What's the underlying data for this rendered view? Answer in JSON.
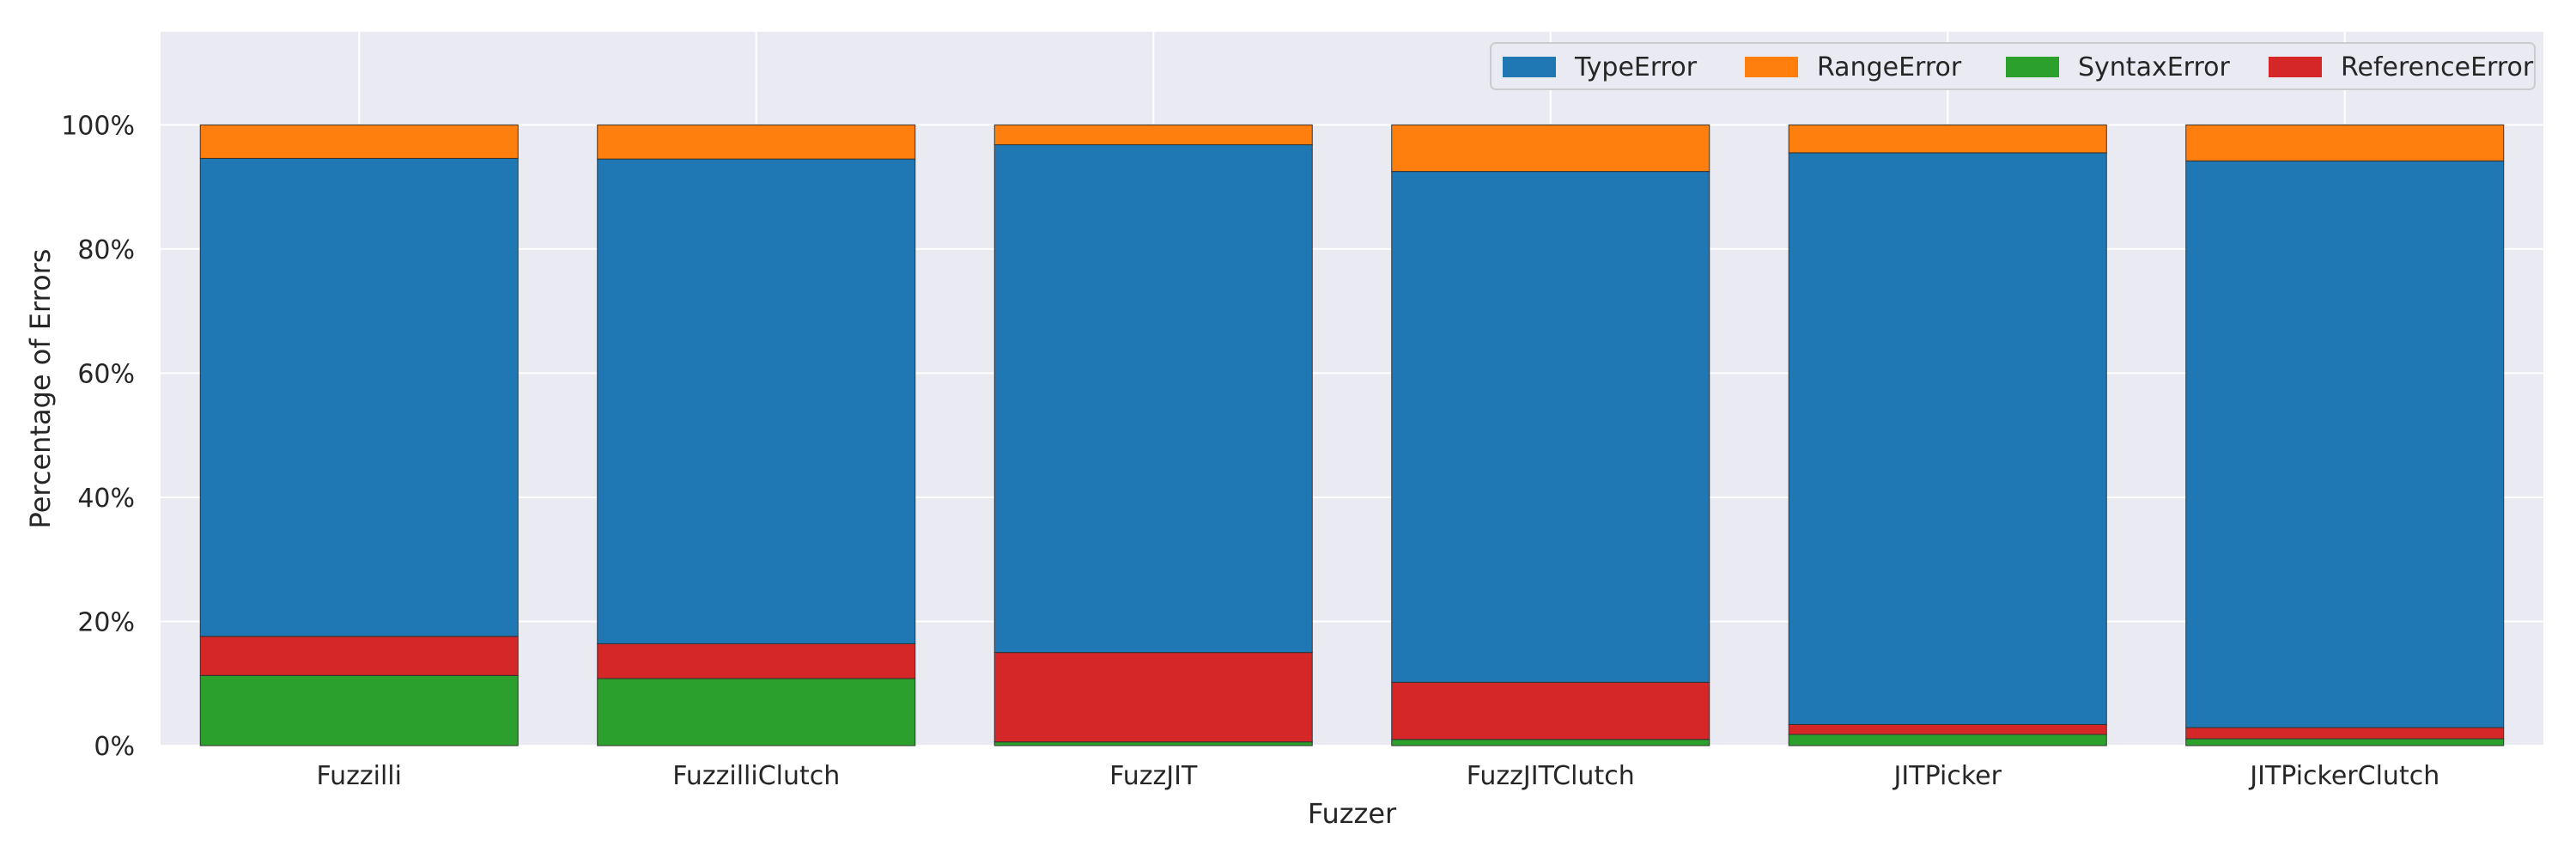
{
  "chart_data": {
    "type": "bar",
    "stacked": true,
    "normalized": true,
    "xlabel": "Fuzzer",
    "ylabel": "Percentage of Errors",
    "categories": [
      "Fuzzilli",
      "FuzzilliClutch",
      "FuzzJIT",
      "FuzzJITClutch",
      "JITPicker",
      "JITPickerClutch"
    ],
    "series": [
      {
        "name": "SyntaxError",
        "color": "#2ca02c",
        "values": [
          11.3,
          10.8,
          0.6,
          1.0,
          1.8,
          1.1
        ]
      },
      {
        "name": "ReferenceError",
        "color": "#d62728",
        "values": [
          6.3,
          5.6,
          14.4,
          9.2,
          1.6,
          1.8
        ]
      },
      {
        "name": "TypeError",
        "color": "#1f77b4",
        "values": [
          77.0,
          78.1,
          81.8,
          82.3,
          92.1,
          91.3
        ]
      },
      {
        "name": "RangeError",
        "color": "#ff7f0e",
        "values": [
          5.4,
          5.5,
          3.2,
          7.5,
          4.5,
          5.8
        ]
      }
    ],
    "legend_order": [
      "TypeError",
      "RangeError",
      "SyntaxError",
      "ReferenceError"
    ],
    "yticks": [
      0,
      20,
      40,
      60,
      80,
      100
    ],
    "ytick_suffix": "%",
    "ylim": [
      0,
      115
    ],
    "grid": true,
    "legend_position": "top-right",
    "background_color": "#eaeaf2",
    "grid_color": "#ffffff"
  }
}
